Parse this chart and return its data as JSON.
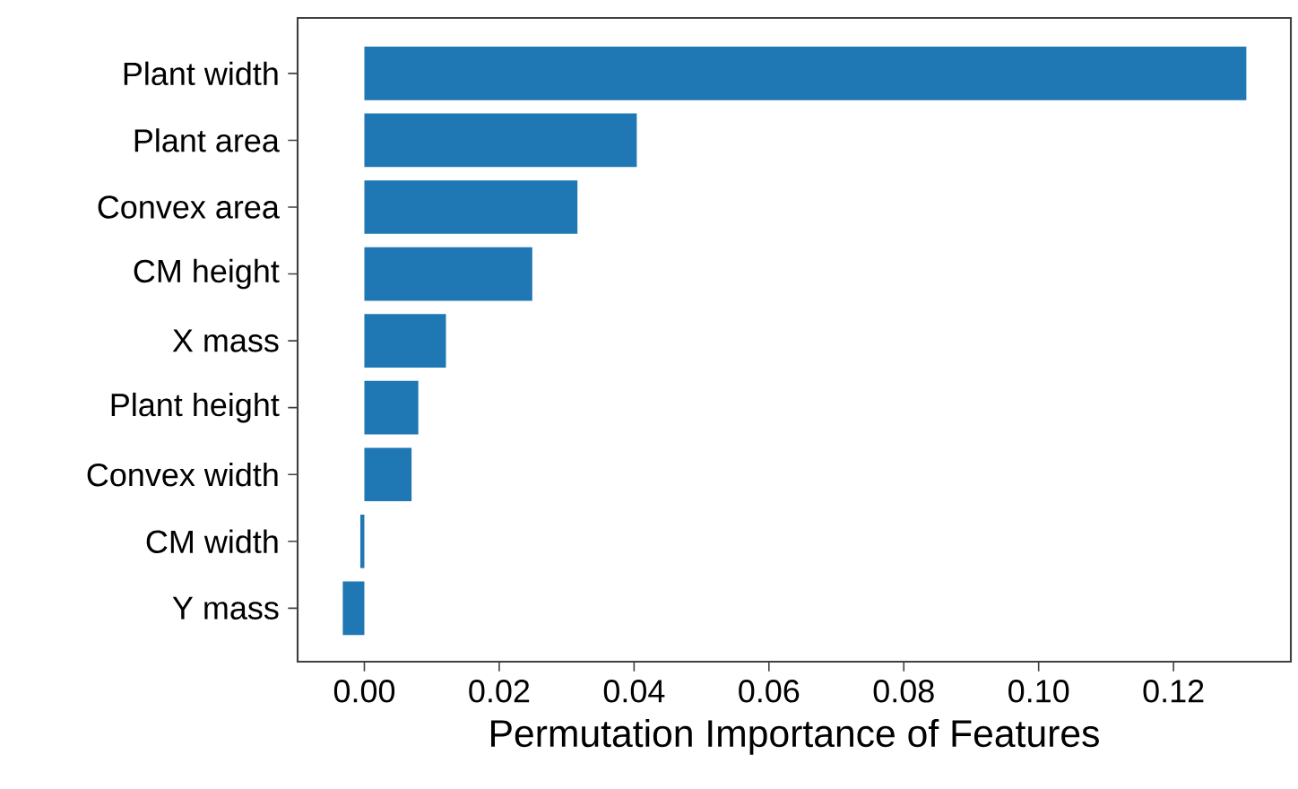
{
  "chart_data": {
    "type": "bar",
    "orientation": "horizontal",
    "xlabel": "Permutation Importance of Features",
    "categories": [
      "Plant width",
      "Plant area",
      "Convex area",
      "CM height",
      "X mass",
      "Plant height",
      "Convex width",
      "CM width",
      "Y mass"
    ],
    "values": [
      0.1308,
      0.0404,
      0.0316,
      0.0249,
      0.0121,
      0.008,
      0.007,
      -0.0006,
      -0.0032
    ],
    "color": "#1f77b4",
    "xlim": [
      -0.0099,
      0.1374
    ],
    "xticks": [
      {
        "value": 0,
        "label": "0.00"
      },
      {
        "value": 0.02,
        "label": "0.02"
      },
      {
        "value": 0.04,
        "label": "0.04"
      },
      {
        "value": 0.06,
        "label": "0.06"
      },
      {
        "value": 0.08,
        "label": "0.08"
      },
      {
        "value": 0.1,
        "label": "0.10"
      },
      {
        "value": 0.12,
        "label": "0.12"
      }
    ],
    "grid": false
  }
}
